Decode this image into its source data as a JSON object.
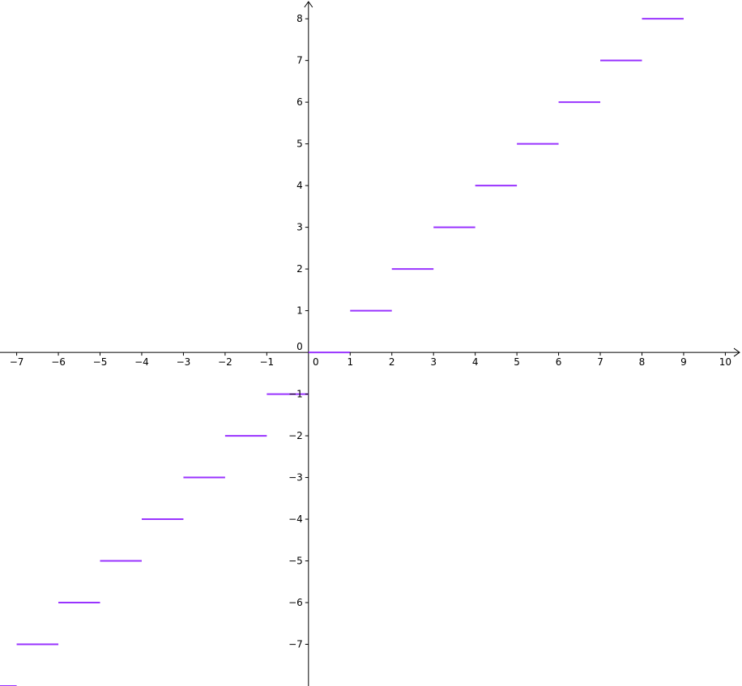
{
  "chart_data": {
    "type": "line",
    "subtype": "step-function",
    "title": "",
    "xlabel": "",
    "ylabel": "",
    "grid": false,
    "xlim": [
      -7.4,
      10.4
    ],
    "ylim": [
      -8.0,
      8.45
    ],
    "x_ticks": [
      "−7",
      "−6",
      "−5",
      "−4",
      "−3",
      "−2",
      "−1",
      "0",
      "1",
      "2",
      "3",
      "4",
      "5",
      "6",
      "7",
      "8",
      "9",
      "10"
    ],
    "x_tick_values": [
      -7,
      -6,
      -5,
      -4,
      -3,
      -2,
      -1,
      0,
      1,
      2,
      3,
      4,
      5,
      6,
      7,
      8,
      9,
      10
    ],
    "y_ticks": [
      "−7",
      "−6",
      "−5",
      "−4",
      "−3",
      "−2",
      "−1",
      "0",
      "1",
      "2",
      "3",
      "4",
      "5",
      "6",
      "7",
      "8"
    ],
    "y_tick_values": [
      -7,
      -6,
      -5,
      -4,
      -3,
      -2,
      -1,
      0,
      1,
      2,
      3,
      4,
      5,
      6,
      7,
      8
    ],
    "series": [
      {
        "color": "#9933ff",
        "segments": [
          {
            "x": [
              -8,
              -7
            ],
            "y": -8
          },
          {
            "x": [
              -7,
              -6
            ],
            "y": -7
          },
          {
            "x": [
              -6,
              -5
            ],
            "y": -6
          },
          {
            "x": [
              -5,
              -4
            ],
            "y": -5
          },
          {
            "x": [
              -4,
              -3
            ],
            "y": -4
          },
          {
            "x": [
              -3,
              -2
            ],
            "y": -3
          },
          {
            "x": [
              -2,
              -1
            ],
            "y": -2
          },
          {
            "x": [
              -1,
              0
            ],
            "y": -1
          },
          {
            "x": [
              0,
              1
            ],
            "y": 0
          },
          {
            "x": [
              1,
              2
            ],
            "y": 1
          },
          {
            "x": [
              2,
              3
            ],
            "y": 2
          },
          {
            "x": [
              3,
              4
            ],
            "y": 3
          },
          {
            "x": [
              4,
              5
            ],
            "y": 4
          },
          {
            "x": [
              5,
              6
            ],
            "y": 5
          },
          {
            "x": [
              6,
              7
            ],
            "y": 6
          },
          {
            "x": [
              7,
              8
            ],
            "y": 7
          },
          {
            "x": [
              8,
              9
            ],
            "y": 8
          }
        ]
      }
    ],
    "axis_color": "#000000"
  }
}
